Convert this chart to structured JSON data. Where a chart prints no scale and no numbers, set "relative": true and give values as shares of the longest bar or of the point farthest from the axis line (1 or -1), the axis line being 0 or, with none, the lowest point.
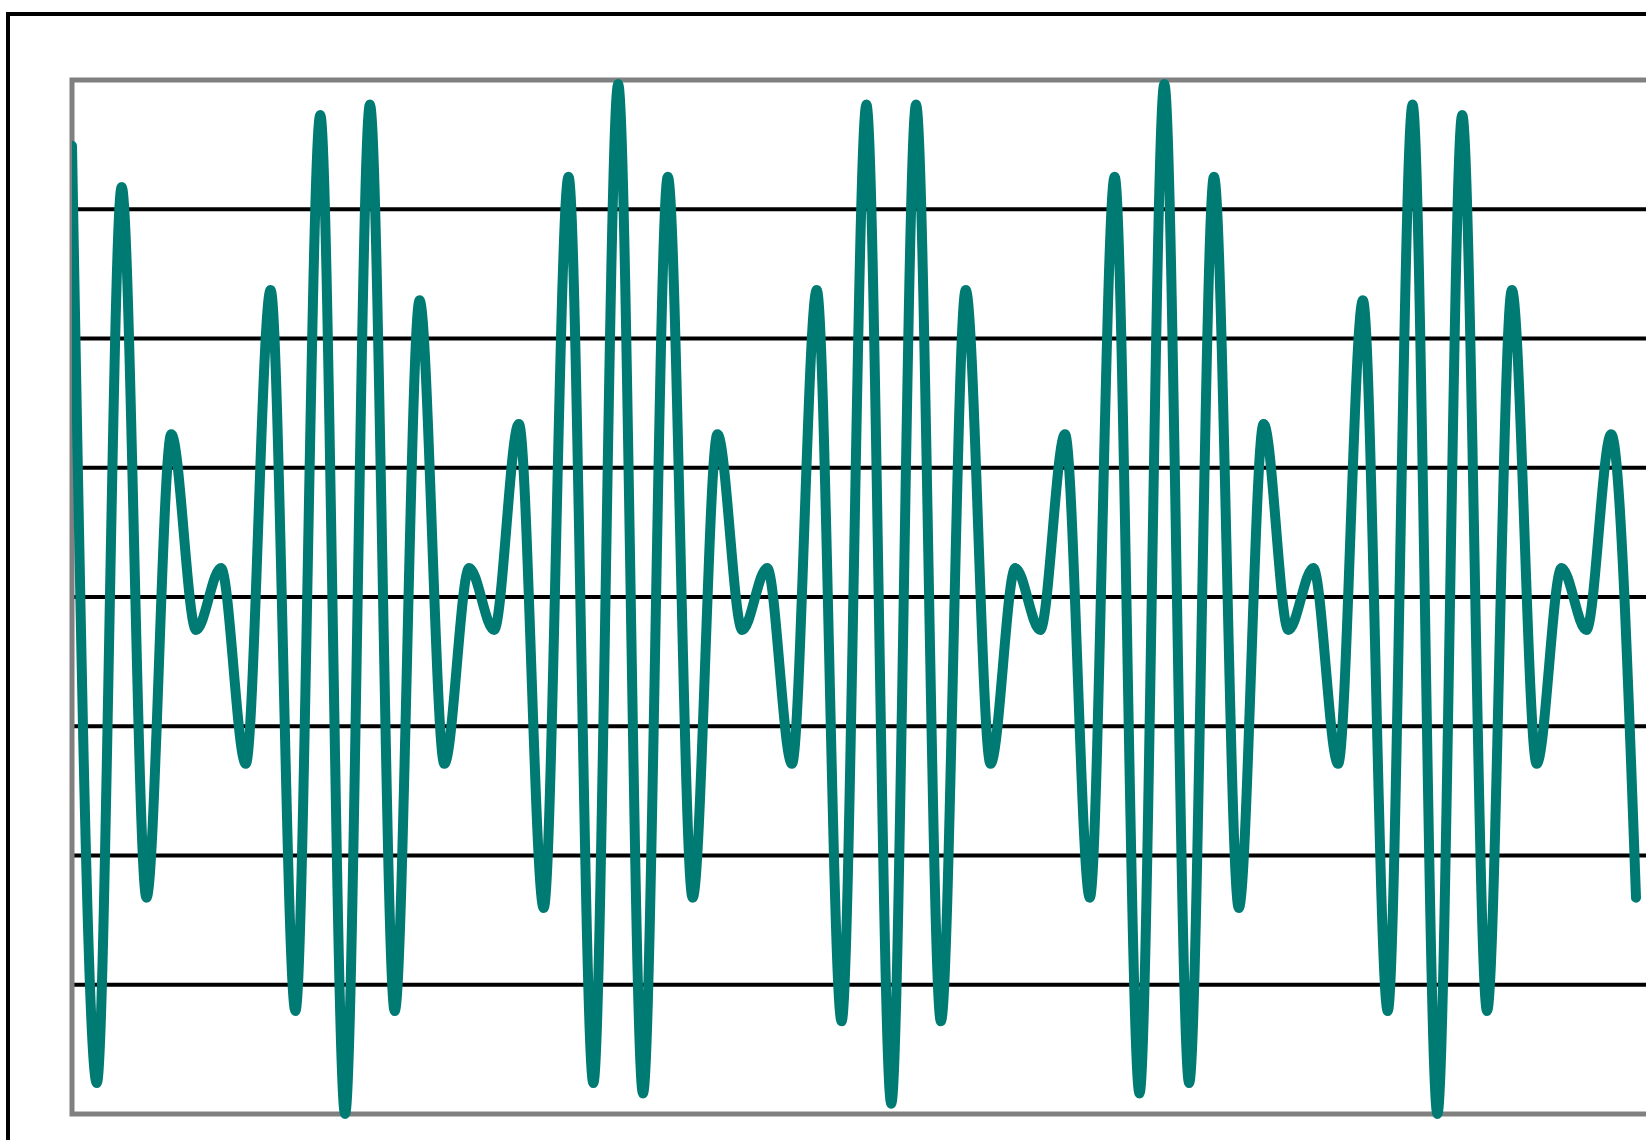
{
  "chart_data": {
    "type": "line",
    "relative": true,
    "grid": true,
    "categories": [
      null,
      null,
      null,
      null,
      null,
      null,
      null,
      null,
      null,
      null,
      null,
      null,
      null,
      null,
      null,
      null,
      null,
      null,
      null,
      null,
      null,
      null,
      null,
      null,
      null,
      null,
      null,
      null,
      null,
      null,
      null,
      null,
      null,
      null,
      null,
      null,
      null,
      null,
      null,
      null,
      null,
      null,
      null,
      null,
      null,
      null,
      null,
      null,
      null,
      null,
      null,
      null,
      null,
      null,
      null,
      null,
      null,
      null,
      null,
      null,
      null,
      null,
      null,
      null
    ],
    "series": [
      {
        "color": "#007b73",
        "values": [
          0.94,
          0.03,
          0.9,
          0.21,
          0.66,
          0.47,
          0.53,
          0.34,
          0.8,
          0.1,
          0.97,
          0,
          0.98,
          0.1,
          0.79,
          0.34,
          0.53,
          0.47,
          0.67,
          0.2,
          0.91,
          0.03,
          1,
          0.02,
          0.91,
          0.21,
          0.66,
          0.47,
          0.53,
          0.34,
          0.8,
          0.09,
          0.98,
          0.01,
          0.98,
          0.09,
          0.8,
          0.34,
          0.53,
          0.47,
          0.66,
          0.21,
          0.91,
          0.02,
          1,
          0.03,
          0.91,
          0.2,
          0.67,
          0.47,
          0.53,
          0.34,
          0.79,
          0.1,
          0.98,
          0,
          0.97,
          0.1,
          0.8,
          0.34,
          0.53,
          0.47,
          0.66,
          0.21
        ]
      }
    ]
  }
}
